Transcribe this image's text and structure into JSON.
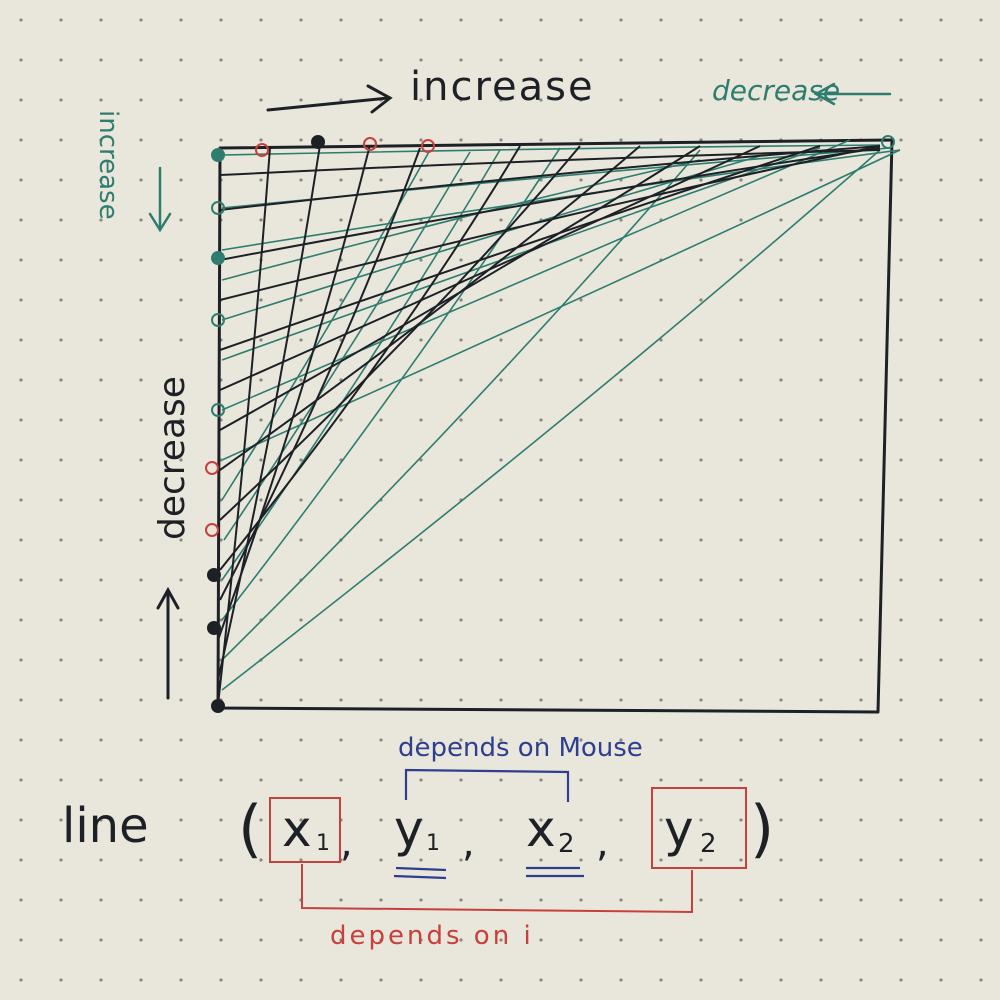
{
  "colors": {
    "paper": "#e9e6dc",
    "dot": "#8a887f",
    "ink_black": "#1d2126",
    "ink_green": "#2f7d6f",
    "ink_red": "#c8403c",
    "ink_blue": "#2e3f8f"
  },
  "labels": {
    "top_increase": "increase",
    "top_decrease": "decrease",
    "left_increase": "increase",
    "left_decrease": "decrease"
  },
  "formula": {
    "func": "line",
    "open_paren": "(",
    "close_paren": ")",
    "comma": ",",
    "x1_base": "x",
    "x1_sub": "1",
    "y1_base": "y",
    "y1_sub": "1",
    "x2_base": "x",
    "x2_sub": "2",
    "y2_base": "y",
    "y2_sub": "2",
    "mouse_note": "depends on Mouse",
    "i_note": "depends on i"
  }
}
